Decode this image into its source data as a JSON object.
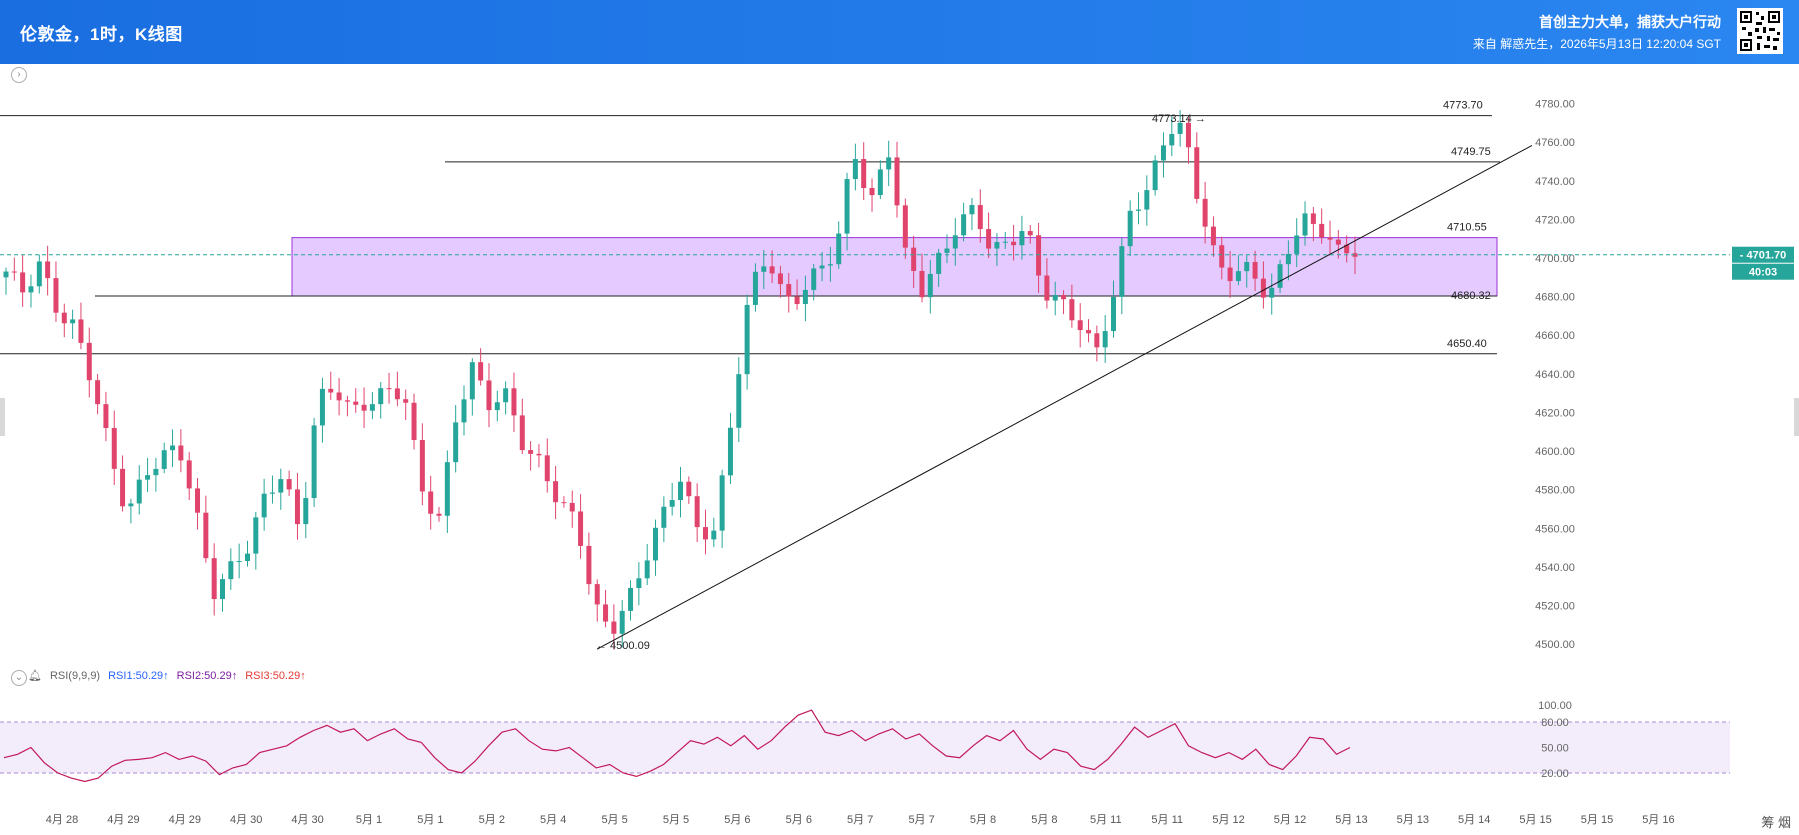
{
  "header": {
    "title": "伦敦金，1时，K线图",
    "slogan": "首创主力大单，捕获大户行动",
    "source": "来自 解惑先生，2026年5月13日 12:20:04 SGT"
  },
  "rsi_legend": {
    "label": "RSI(9,9,9)",
    "rsi1": "RSI1:50.29↑",
    "rsi2": "RSI2:50.29↑",
    "rsi3": "RSI3:50.29↑"
  },
  "corner_text": "筹 烟",
  "colors": {
    "up": "#26a69a",
    "down": "#e0436b",
    "zone_fill": "#dbb8ff",
    "zone_stroke": "#9b30d9",
    "price_tag": "#26a69a",
    "rsi_line": "#c2185b"
  },
  "chart_data": {
    "type": "candlestick",
    "symbol": "伦敦金",
    "interval": "1时",
    "ylim": [
      4497,
      4787
    ],
    "yticks": [
      4500,
      4520,
      4540,
      4560,
      4580,
      4600,
      4620,
      4640,
      4660,
      4680,
      4700,
      4720,
      4740,
      4760,
      4780
    ],
    "xticks": [
      "4月 28",
      "4月 29",
      "4月 29",
      "4月 30",
      "4月 30",
      "5月 1",
      "5月 1",
      "5月 2",
      "5月 4",
      "5月 5",
      "5月 5",
      "5月 6",
      "5月 6",
      "5月 7",
      "5月 7",
      "5月 8",
      "5月 8",
      "5月 11",
      "5月 11",
      "5月 12",
      "5月 12",
      "5月 13",
      "5月 13",
      "5月 14",
      "5月 15",
      "5月 15",
      "5月 16"
    ],
    "current_price": "4701.70",
    "countdown": "40:03",
    "anchors": [
      4690,
      4682,
      4700,
      4674,
      4662,
      4632,
      4600,
      4570,
      4590,
      4594,
      4600,
      4568,
      4530,
      4540,
      4548,
      4575,
      4590,
      4560,
      4626,
      4630,
      4618,
      4628,
      4634,
      4630,
      4578,
      4562,
      4620,
      4646,
      4622,
      4626,
      4600,
      4596,
      4574,
      4562,
      4516,
      4508,
      4526,
      4546,
      4565,
      4584,
      4560,
      4562,
      4620,
      4680,
      4700,
      4680,
      4684,
      4694,
      4700,
      4756,
      4730,
      4760,
      4700,
      4680,
      4700,
      4720,
      4728,
      4700,
      4706,
      4716,
      4686,
      4678,
      4664,
      4648,
      4680,
      4728,
      4734,
      4760,
      4770,
      4730,
      4700,
      4690,
      4692,
      4676,
      4706,
      4722,
      4714,
      4700,
      4704
    ],
    "levels": [
      {
        "label": "4773.70",
        "value": 4773.7
      },
      {
        "label": "4749.75",
        "value": 4749.75
      },
      {
        "label": "4710.55",
        "value": 4710.55
      },
      {
        "label": "4680.32",
        "value": 4680.32
      },
      {
        "label": "4650.40",
        "value": 4650.4
      }
    ],
    "zone": {
      "top": 4710.55,
      "bottom": 4680.32
    },
    "trendline": {
      "from": {
        "index": 44,
        "price": 4500
      },
      "to": {
        "index": 108,
        "price": 4750
      }
    },
    "annotations": [
      {
        "label": "4773.14",
        "value": 4773.14
      },
      {
        "label": "4500.09",
        "value": 4500.09
      }
    ],
    "rsi": {
      "ylim": [
        0,
        100
      ],
      "yticks": [
        "100.00",
        "80.00",
        "50.00",
        "20.00"
      ],
      "levels": [
        80,
        20
      ],
      "anchors": [
        38,
        42,
        50,
        32,
        20,
        14,
        10,
        14,
        28,
        35,
        36,
        38,
        44,
        36,
        40,
        34,
        18,
        26,
        30,
        44,
        48,
        52,
        62,
        70,
        76,
        68,
        72,
        58,
        66,
        72,
        60,
        56,
        38,
        24,
        20,
        34,
        52,
        68,
        72,
        58,
        48,
        46,
        50,
        38,
        26,
        30,
        20,
        16,
        22,
        30,
        44,
        58,
        54,
        62,
        52,
        64,
        48,
        58,
        74,
        88,
        94,
        68,
        64,
        70,
        58,
        66,
        72,
        60,
        66,
        52,
        40,
        38,
        52,
        64,
        58,
        70,
        48,
        36,
        48,
        44,
        28,
        24,
        36,
        54,
        74,
        62,
        70,
        78,
        52,
        44,
        38,
        44,
        36,
        48,
        30,
        24,
        40,
        62,
        60,
        42,
        50
      ]
    }
  }
}
